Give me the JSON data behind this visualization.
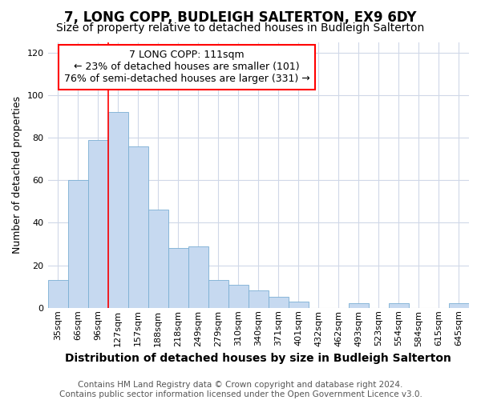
{
  "title": "7, LONG COPP, BUDLEIGH SALTERTON, EX9 6DY",
  "subtitle": "Size of property relative to detached houses in Budleigh Salterton",
  "xlabel": "Distribution of detached houses by size in Budleigh Salterton",
  "ylabel": "Number of detached properties",
  "categories": [
    "35sqm",
    "66sqm",
    "96sqm",
    "127sqm",
    "157sqm",
    "188sqm",
    "218sqm",
    "249sqm",
    "279sqm",
    "310sqm",
    "340sqm",
    "371sqm",
    "401sqm",
    "432sqm",
    "462sqm",
    "493sqm",
    "523sqm",
    "554sqm",
    "584sqm",
    "615sqm",
    "645sqm"
  ],
  "values": [
    13,
    60,
    79,
    92,
    76,
    46,
    28,
    29,
    13,
    11,
    8,
    5,
    3,
    0,
    0,
    2,
    0,
    2,
    0,
    0,
    2
  ],
  "bar_color": "#c6d9f0",
  "bar_edge_color": "#7bafd4",
  "vline_color": "red",
  "vline_x": 2.5,
  "annotation_line1": "7 LONG COPP: 111sqm",
  "annotation_line2": "← 23% of detached houses are smaller (101)",
  "annotation_line3": "76% of semi-detached houses are larger (331) →",
  "annotation_box_color": "white",
  "annotation_box_edgecolor": "red",
  "ylim": [
    0,
    125
  ],
  "yticks": [
    0,
    20,
    40,
    60,
    80,
    100,
    120
  ],
  "footnote": "Contains HM Land Registry data © Crown copyright and database right 2024.\nContains public sector information licensed under the Open Government Licence v3.0.",
  "title_fontsize": 12,
  "subtitle_fontsize": 10,
  "xlabel_fontsize": 10,
  "ylabel_fontsize": 9,
  "tick_fontsize": 8,
  "annotation_fontsize": 9,
  "footnote_fontsize": 7.5,
  "bg_color": "#ffffff",
  "plot_bg_color": "#ffffff",
  "grid_color": "#d0d8e8"
}
